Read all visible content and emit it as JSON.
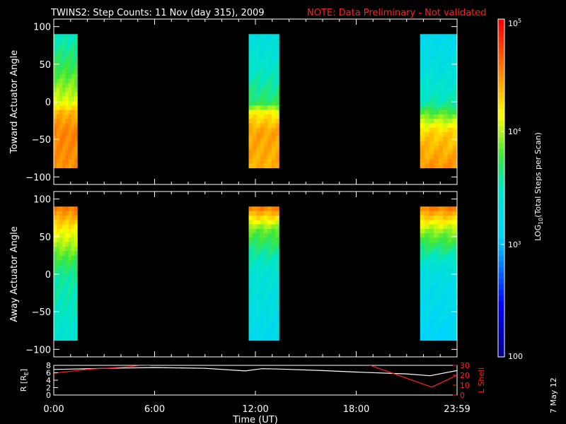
{
  "header": {
    "title": "TWINS2: Step Counts: 11 Nov (day 315), 2009",
    "note": "NOTE: Data Preliminary - Not validated",
    "date_stamp": "7 May 12"
  },
  "colors": {
    "background": "#000000",
    "text": "#ffffff",
    "note": "#ff2020",
    "r_line": "#ffffff",
    "lshell_line": "#ff2020"
  },
  "chart_data": [
    {
      "type": "heatmap",
      "name": "toward",
      "ylabel": "Toward Actuator Angle",
      "ylim": [
        -110,
        110
      ],
      "yticks": [
        -100,
        -50,
        0,
        50,
        100
      ],
      "xlim": [
        0,
        24
      ],
      "x_blocks": [
        [
          0.0,
          1.4
        ],
        [
          11.6,
          13.4
        ],
        [
          21.8,
          23.99
        ]
      ],
      "angle_range": [
        -88,
        90
      ],
      "colorscale": "rainbow, log10 counts 100 to 100000",
      "profile_log10": {
        "block1": {
          "angles": [
            90,
            40,
            0,
            -15,
            -40,
            -88
          ],
          "values": [
            3.5,
            3.8,
            4.1,
            4.4,
            4.55,
            4.5
          ]
        },
        "block2": {
          "angles": [
            90,
            40,
            0,
            -15,
            -40,
            -88
          ],
          "values": [
            3.3,
            3.5,
            3.7,
            4.2,
            4.45,
            4.4
          ]
        },
        "block3": {
          "angles": [
            90,
            40,
            0,
            -40,
            -88
          ],
          "values": [
            3.2,
            3.35,
            3.55,
            4.3,
            4.5
          ]
        }
      }
    },
    {
      "type": "heatmap",
      "name": "away",
      "ylabel": "Away Actuator Angle",
      "ylim": [
        -110,
        110
      ],
      "yticks": [
        -100,
        -50,
        0,
        50,
        100
      ],
      "xlim": [
        0,
        24
      ],
      "x_blocks": [
        [
          0.0,
          1.4
        ],
        [
          11.6,
          13.4
        ],
        [
          21.8,
          23.99
        ]
      ],
      "angle_range": [
        -88,
        90
      ],
      "colorscale": "rainbow, log10 counts 100 to 100000",
      "profile_log10": {
        "block1": {
          "angles": [
            90,
            60,
            30,
            0,
            -50,
            -88
          ],
          "values": [
            4.6,
            4.2,
            3.9,
            3.6,
            3.5,
            3.4
          ]
        },
        "block2": {
          "angles": [
            90,
            60,
            30,
            0,
            -50,
            -88
          ],
          "values": [
            4.6,
            3.9,
            3.6,
            3.4,
            3.3,
            3.2
          ]
        },
        "block3": {
          "angles": [
            90,
            60,
            30,
            0,
            -50,
            -88
          ],
          "values": [
            4.6,
            4.0,
            3.6,
            3.3,
            3.2,
            3.1
          ]
        }
      }
    },
    {
      "type": "line",
      "name": "orbit",
      "ylabel": "R [R",
      "ylabel_sub": "E",
      "ylabel_close": "]",
      "y2label": "L Shell",
      "ylim": [
        0,
        8
      ],
      "yticks": [
        0,
        2,
        4,
        6,
        8
      ],
      "y2lim": [
        0,
        30
      ],
      "y2ticks": [
        0,
        10,
        20,
        30
      ],
      "xlim": [
        0,
        24
      ],
      "xticks": [
        0,
        6,
        12,
        18,
        24
      ],
      "xtick_labels": [
        "0:00",
        "6:00",
        "12:00",
        "18:00",
        "23:59"
      ],
      "xlabel": "Time (UT)",
      "series": [
        {
          "x": [
            0,
            1,
            3,
            6,
            9,
            11.4,
            12.4,
            13.5,
            16,
            18,
            21,
            22.4,
            23.99
          ],
          "values": [
            6.9,
            7.0,
            7.2,
            7.4,
            7.2,
            6.5,
            7.1,
            7.0,
            6.6,
            6.2,
            5.7,
            5.2,
            6.6
          ]
        },
        {
          "axis": "right",
          "x": [
            0,
            2,
            4,
            5,
            5.6,
            6,
            7,
            18.5,
            22.5,
            23.99
          ],
          "values": [
            22,
            26,
            28,
            29.5,
            30,
            31,
            33,
            32,
            8,
            20
          ]
        }
      ]
    }
  ],
  "colorbar": {
    "label": "LOG10(Total Steps per Scan)",
    "label_main": "LOG",
    "label_sub": "10",
    "label_rest": "(Total Steps per Scan)",
    "range_log10": [
      2,
      5
    ],
    "tick_100": "100",
    "tick_e3_base": "10",
    "tick_e3_exp": "3",
    "tick_e4_base": "10",
    "tick_e4_exp": "4",
    "tick_e5_base": "10",
    "tick_e5_exp": "5"
  }
}
